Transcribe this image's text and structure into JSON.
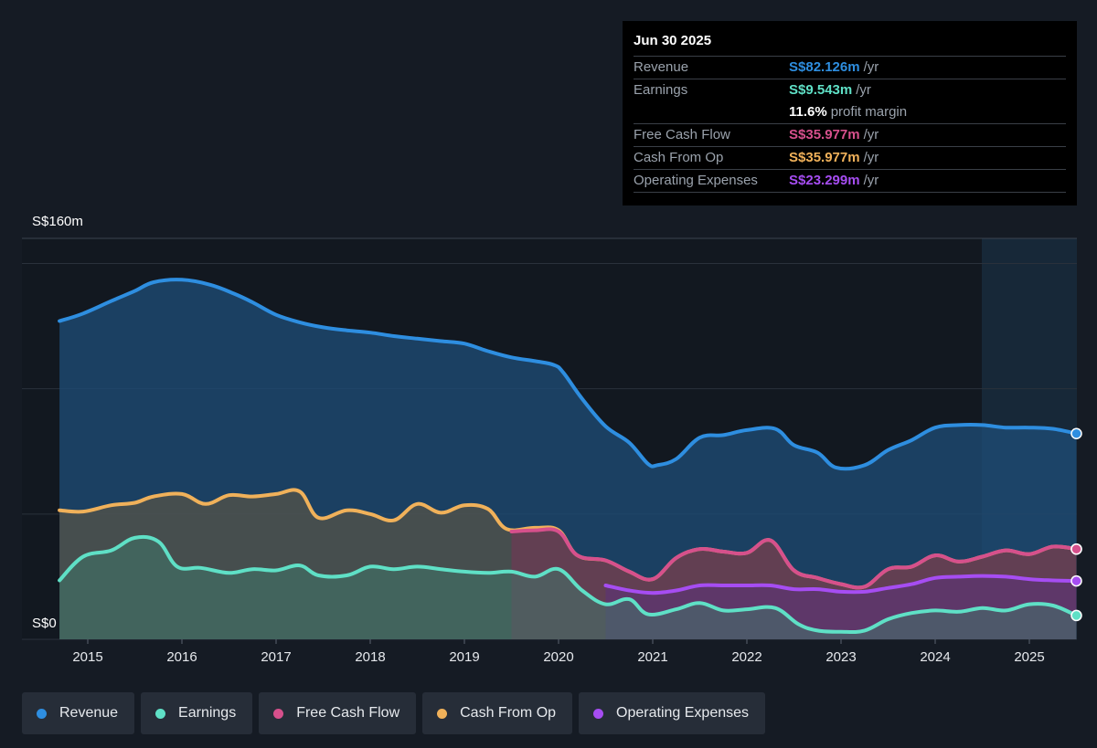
{
  "tooltip": {
    "date": "Jun 30 2025",
    "rows": {
      "revenue": {
        "label": "Revenue",
        "value": "S$82.126m",
        "unit": "/yr",
        "color": "#2e8ee0"
      },
      "earnings": {
        "label": "Earnings",
        "value": "S$9.543m",
        "unit": "/yr",
        "color": "#5fe0c6"
      },
      "margin": {
        "value": "11.6%",
        "unit": "profit margin",
        "color": "#ffffff"
      },
      "fcf": {
        "label": "Free Cash Flow",
        "value": "S$35.977m",
        "unit": "/yr",
        "color": "#d6508c"
      },
      "cfo": {
        "label": "Cash From Op",
        "value": "S$35.977m",
        "unit": "/yr",
        "color": "#f0b15a"
      },
      "opex": {
        "label": "Operating Expenses",
        "value": "S$23.299m",
        "unit": "/yr",
        "color": "#a64df2"
      }
    }
  },
  "legend": {
    "revenue": {
      "label": "Revenue",
      "color": "#2e8ee0"
    },
    "earnings": {
      "label": "Earnings",
      "color": "#5fe0c6"
    },
    "fcf": {
      "label": "Free Cash Flow",
      "color": "#d6508c"
    },
    "cfo": {
      "label": "Cash From Op",
      "color": "#f0b15a"
    },
    "opex": {
      "label": "Operating Expenses",
      "color": "#a64df2"
    }
  },
  "chart_data": {
    "type": "area",
    "ylim": [
      0,
      160
    ],
    "y_tick_labels": [
      "S$160m",
      "S$0"
    ],
    "x_ticks": [
      2015,
      2016,
      2017,
      2018,
      2019,
      2020,
      2021,
      2022,
      2023,
      2024,
      2025
    ],
    "x_range": [
      2014.3,
      2025.5
    ],
    "forecast_region_start": 2024.5,
    "series": [
      {
        "name": "Revenue",
        "key": "revenue",
        "color": "#2e8ee0",
        "points": [
          [
            2014.7,
            127
          ],
          [
            2014.95,
            130
          ],
          [
            2015.25,
            135
          ],
          [
            2015.5,
            139
          ],
          [
            2015.7,
            142.5
          ],
          [
            2016.0,
            143.5
          ],
          [
            2016.3,
            141.5
          ],
          [
            2016.55,
            138
          ],
          [
            2016.75,
            134.5
          ],
          [
            2017.0,
            129.5
          ],
          [
            2017.25,
            126.5
          ],
          [
            2017.5,
            124.5
          ],
          [
            2017.75,
            123.3
          ],
          [
            2018.0,
            122.4
          ],
          [
            2018.25,
            121
          ],
          [
            2018.5,
            120
          ],
          [
            2018.75,
            119
          ],
          [
            2019.0,
            118
          ],
          [
            2019.25,
            115
          ],
          [
            2019.5,
            112.5
          ],
          [
            2019.75,
            111
          ],
          [
            2019.95,
            109.5
          ],
          [
            2020.05,
            106.5
          ],
          [
            2020.25,
            96
          ],
          [
            2020.5,
            85
          ],
          [
            2020.75,
            78.5
          ],
          [
            2020.95,
            70
          ],
          [
            2021.05,
            69.5
          ],
          [
            2021.25,
            72
          ],
          [
            2021.5,
            80.5
          ],
          [
            2021.75,
            81.5
          ],
          [
            2022.0,
            83.5
          ],
          [
            2022.3,
            84
          ],
          [
            2022.5,
            77.5
          ],
          [
            2022.75,
            74.5
          ],
          [
            2022.95,
            68.5
          ],
          [
            2023.25,
            69.5
          ],
          [
            2023.5,
            75.5
          ],
          [
            2023.75,
            79.5
          ],
          [
            2024.0,
            84.5
          ],
          [
            2024.25,
            85.5
          ],
          [
            2024.5,
            85.5
          ],
          [
            2024.75,
            84.5
          ],
          [
            2025.0,
            84.5
          ],
          [
            2025.25,
            84
          ],
          [
            2025.5,
            82.1
          ]
        ]
      },
      {
        "name": "Cash From Op",
        "key": "cfo",
        "color": "#f0b15a",
        "points": [
          [
            2014.7,
            51.5
          ],
          [
            2014.95,
            51
          ],
          [
            2015.25,
            53.5
          ],
          [
            2015.5,
            54.5
          ],
          [
            2015.7,
            57
          ],
          [
            2016.0,
            58
          ],
          [
            2016.25,
            54
          ],
          [
            2016.5,
            57.5
          ],
          [
            2016.75,
            57
          ],
          [
            2017.0,
            58
          ],
          [
            2017.25,
            59
          ],
          [
            2017.45,
            48.5
          ],
          [
            2017.75,
            51.5
          ],
          [
            2018.0,
            50
          ],
          [
            2018.25,
            47.5
          ],
          [
            2018.5,
            54
          ],
          [
            2018.75,
            50.5
          ],
          [
            2019.0,
            53.5
          ],
          [
            2019.25,
            52
          ],
          [
            2019.45,
            44
          ],
          [
            2019.75,
            44.5
          ],
          [
            2020.0,
            43.5
          ],
          [
            2020.2,
            33.5
          ],
          [
            2020.5,
            31.5
          ],
          [
            2020.75,
            27
          ],
          [
            2021.0,
            24
          ],
          [
            2021.25,
            32.5
          ],
          [
            2021.5,
            36
          ],
          [
            2021.75,
            35
          ],
          [
            2022.0,
            34.5
          ],
          [
            2022.25,
            39.5
          ],
          [
            2022.5,
            27.5
          ],
          [
            2022.75,
            24.5
          ],
          [
            2023.0,
            22
          ],
          [
            2023.25,
            21
          ],
          [
            2023.5,
            28
          ],
          [
            2023.75,
            29
          ],
          [
            2024.0,
            33.5
          ],
          [
            2024.25,
            31
          ],
          [
            2024.5,
            33
          ],
          [
            2024.75,
            35.5
          ],
          [
            2025.0,
            34
          ],
          [
            2025.25,
            37
          ],
          [
            2025.5,
            36
          ]
        ]
      },
      {
        "name": "Free Cash Flow",
        "key": "fcf",
        "color": "#d6508c",
        "points": [
          [
            2019.5,
            43
          ],
          [
            2019.75,
            43.5
          ],
          [
            2020.0,
            43
          ],
          [
            2020.2,
            33.5
          ],
          [
            2020.5,
            31.5
          ],
          [
            2020.75,
            27
          ],
          [
            2021.0,
            24
          ],
          [
            2021.25,
            32.5
          ],
          [
            2021.5,
            36
          ],
          [
            2021.75,
            35
          ],
          [
            2022.0,
            34.5
          ],
          [
            2022.25,
            39.5
          ],
          [
            2022.5,
            27.5
          ],
          [
            2022.75,
            24.5
          ],
          [
            2023.0,
            22
          ],
          [
            2023.25,
            21
          ],
          [
            2023.5,
            28
          ],
          [
            2023.75,
            29
          ],
          [
            2024.0,
            33.5
          ],
          [
            2024.25,
            31
          ],
          [
            2024.5,
            33
          ],
          [
            2024.75,
            35.5
          ],
          [
            2025.0,
            34
          ],
          [
            2025.25,
            37
          ],
          [
            2025.5,
            36
          ]
        ]
      },
      {
        "name": "Operating Expenses",
        "key": "opex",
        "color": "#a64df2",
        "points": [
          [
            2020.5,
            21.5
          ],
          [
            2020.75,
            19.5
          ],
          [
            2021.0,
            18.5
          ],
          [
            2021.25,
            19.5
          ],
          [
            2021.5,
            21.5
          ],
          [
            2021.75,
            21.5
          ],
          [
            2022.0,
            21.5
          ],
          [
            2022.25,
            21.5
          ],
          [
            2022.5,
            20
          ],
          [
            2022.75,
            20
          ],
          [
            2023.0,
            19
          ],
          [
            2023.25,
            19
          ],
          [
            2023.5,
            20.5
          ],
          [
            2023.75,
            22
          ],
          [
            2024.0,
            24.5
          ],
          [
            2024.25,
            25
          ],
          [
            2024.5,
            25.3
          ],
          [
            2024.75,
            25
          ],
          [
            2025.0,
            24
          ],
          [
            2025.25,
            23.5
          ],
          [
            2025.5,
            23.3
          ]
        ]
      },
      {
        "name": "Earnings",
        "key": "earnings",
        "color": "#5fe0c6",
        "points": [
          [
            2014.7,
            23.5
          ],
          [
            2014.95,
            33
          ],
          [
            2015.25,
            35.5
          ],
          [
            2015.5,
            40.5
          ],
          [
            2015.75,
            39
          ],
          [
            2015.95,
            29
          ],
          [
            2016.2,
            28.5
          ],
          [
            2016.5,
            26.5
          ],
          [
            2016.75,
            28
          ],
          [
            2017.0,
            27.5
          ],
          [
            2017.25,
            29.5
          ],
          [
            2017.45,
            25.5
          ],
          [
            2017.75,
            25.5
          ],
          [
            2018.0,
            29
          ],
          [
            2018.25,
            28
          ],
          [
            2018.5,
            29
          ],
          [
            2018.75,
            28
          ],
          [
            2019.0,
            27
          ],
          [
            2019.25,
            26.5
          ],
          [
            2019.5,
            27
          ],
          [
            2019.75,
            25
          ],
          [
            2020.0,
            28
          ],
          [
            2020.25,
            19.5
          ],
          [
            2020.5,
            14
          ],
          [
            2020.75,
            16
          ],
          [
            2020.95,
            10
          ],
          [
            2021.25,
            12
          ],
          [
            2021.5,
            14.5
          ],
          [
            2021.75,
            11.5
          ],
          [
            2022.0,
            12
          ],
          [
            2022.3,
            12.5
          ],
          [
            2022.55,
            6
          ],
          [
            2022.75,
            3.5
          ],
          [
            2023.0,
            3
          ],
          [
            2023.25,
            3.5
          ],
          [
            2023.5,
            8
          ],
          [
            2023.75,
            10.5
          ],
          [
            2024.0,
            11.5
          ],
          [
            2024.25,
            11
          ],
          [
            2024.5,
            12.5
          ],
          [
            2024.75,
            11.5
          ],
          [
            2025.0,
            14
          ],
          [
            2025.25,
            13.5
          ],
          [
            2025.5,
            9.5
          ]
        ]
      }
    ]
  }
}
